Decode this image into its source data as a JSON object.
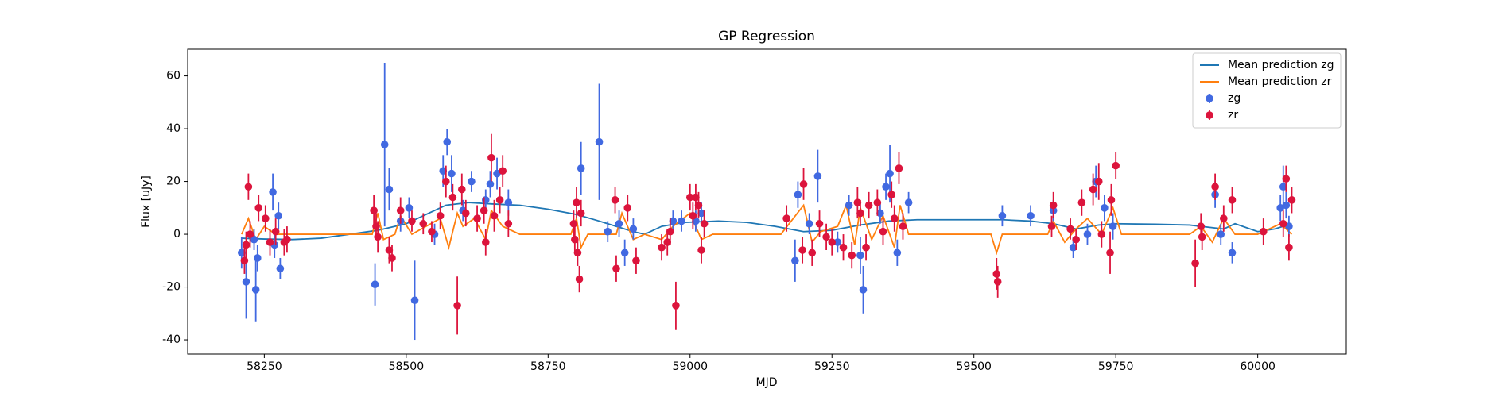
{
  "chart_data": {
    "type": "errorbar",
    "title": "GP Regression",
    "x_label": "MJD",
    "y_label": "Flux [uJy]",
    "xlim": [
      58115,
      60156
    ],
    "ylim": [
      -45.4,
      70.1
    ],
    "xticks": [
      58250,
      58500,
      58750,
      59000,
      59250,
      59500,
      59750,
      60000
    ],
    "yticks": [
      -40,
      -20,
      0,
      20,
      40,
      60
    ],
    "legend": "upper right",
    "series": [
      {
        "name": "Mean prediction zg",
        "type": "line",
        "color": "#1f77b4",
        "x": [
          58210,
          58250,
          58300,
          58350,
          58400,
          58450,
          58500,
          58540,
          58570,
          58610,
          58650,
          58700,
          58750,
          58800,
          58840,
          58870,
          58900,
          58920,
          58950,
          58990,
          59050,
          59100,
          59150,
          59200,
          59250,
          59300,
          59350,
          59400,
          59480,
          59550,
          59600,
          59640,
          59680,
          59720,
          59750,
          59820,
          59880,
          59920,
          59940,
          59960,
          60000,
          60030,
          60060
        ],
        "values": [
          -1.5,
          -1.8,
          -2,
          -1.5,
          0,
          1.5,
          4,
          8,
          11,
          12,
          11.5,
          11,
          9.5,
          7.5,
          5,
          3,
          1,
          0,
          3,
          4.5,
          5,
          4.5,
          3,
          1,
          1.5,
          3.5,
          5,
          5.5,
          5.5,
          5.5,
          5,
          4,
          2,
          3.5,
          4,
          3.8,
          3.5,
          2.5,
          2,
          4,
          1,
          2,
          4
        ]
      },
      {
        "name": "Mean prediction zr",
        "type": "line",
        "color": "#ff7f0e",
        "x": [
          58210,
          58222,
          58235,
          58250,
          58270,
          58300,
          58440,
          58450,
          58460,
          58480,
          58490,
          58510,
          58560,
          58575,
          58590,
          58600,
          58620,
          58640,
          58650,
          58670,
          58700,
          58790,
          58800,
          58808,
          58820,
          58870,
          58880,
          58900,
          58920,
          58950,
          58970,
          59000,
          59020,
          59040,
          59160,
          59200,
          59215,
          59230,
          59260,
          59275,
          59290,
          59300,
          59320,
          59340,
          59360,
          59370,
          59385,
          59530,
          59540,
          59550,
          59630,
          59640,
          59660,
          59680,
          59700,
          59725,
          59745,
          59760,
          59880,
          59900,
          59920,
          59940,
          59960,
          60000,
          60040,
          60060
        ],
        "values": [
          0,
          6,
          -2,
          3,
          0,
          0,
          0,
          8,
          -2,
          0,
          7,
          0,
          6,
          -5,
          8,
          3,
          6,
          -2,
          9,
          3,
          0,
          0,
          6,
          -5,
          0,
          0,
          8,
          -2,
          0,
          -2,
          3,
          8,
          -2,
          0,
          0,
          11,
          -3,
          1,
          3,
          11,
          -4,
          10,
          -2,
          7,
          -5,
          11,
          0,
          0,
          -7,
          0,
          0,
          5,
          -3,
          2,
          6,
          0,
          10,
          0,
          0,
          3,
          -3,
          6,
          0,
          0,
          4,
          0
        ]
      },
      {
        "name": "zg",
        "type": "errorbar",
        "color": "#4169e1",
        "x": [
          58210,
          58218,
          58232,
          58235,
          58238,
          58265,
          58268,
          58275,
          58278,
          58445,
          58462,
          58470,
          58490,
          58505,
          58515,
          58550,
          58565,
          58572,
          58580,
          58600,
          58615,
          58640,
          58648,
          58660,
          58680,
          58808,
          58840,
          58855,
          58875,
          58885,
          58900,
          58970,
          58985,
          59010,
          59020,
          59185,
          59190,
          59210,
          59225,
          59260,
          59280,
          59300,
          59305,
          59335,
          59345,
          59352,
          59365,
          59385,
          59550,
          59600,
          59640,
          59675,
          59700,
          59715,
          59730,
          59745,
          59925,
          59935,
          59955,
          60040,
          60045,
          60050,
          60055
        ],
        "values": [
          -7,
          -18,
          -2,
          -21,
          -9,
          16,
          -4,
          7,
          -13,
          -19,
          34,
          17,
          5,
          10,
          -25,
          0,
          24,
          35,
          23,
          9,
          20,
          13,
          19,
          23,
          12,
          25,
          35,
          1,
          4,
          -7,
          2,
          5,
          5,
          5,
          8,
          -10,
          15,
          4,
          22,
          -3,
          11,
          -8,
          -21,
          8,
          18,
          23,
          -7,
          12,
          7,
          7,
          9,
          -5,
          0,
          20,
          10,
          3,
          15,
          0,
          -7,
          10,
          18,
          11,
          3
        ],
        "errors": [
          6,
          14,
          4,
          12,
          5,
          7,
          5,
          5,
          4,
          8,
          31,
          8,
          4,
          4,
          15,
          4,
          6,
          5,
          7,
          4,
          4,
          4,
          5,
          6,
          5,
          10,
          22,
          4,
          5,
          5,
          4,
          4,
          4,
          4,
          4,
          8,
          5,
          4,
          10,
          4,
          4,
          7,
          9,
          4,
          5,
          11,
          5,
          4,
          4,
          4,
          4,
          4,
          4,
          6,
          5,
          5,
          5,
          4,
          4,
          5,
          8,
          5,
          4
        ]
      },
      {
        "name": "zr",
        "type": "errorbar",
        "color": "#dc143c",
        "x": [
          58215,
          58218,
          58222,
          58225,
          58240,
          58252,
          58260,
          58270,
          58285,
          58290,
          58443,
          58447,
          58450,
          58470,
          58475,
          58490,
          58510,
          58530,
          58545,
          58560,
          58570,
          58582,
          58590,
          58598,
          58605,
          58625,
          58637,
          58640,
          58650,
          58655,
          58665,
          58670,
          58680,
          58795,
          58797,
          58800,
          58805,
          58802,
          58808,
          58870,
          58868,
          58890,
          58905,
          58950,
          58960,
          58975,
          58965,
          59000,
          59005,
          59010,
          59015,
          59020,
          59025,
          59170,
          59200,
          59198,
          59215,
          59228,
          59240,
          59250,
          59270,
          59285,
          59295,
          59300,
          59310,
          59315,
          59330,
          59340,
          59355,
          59360,
          59368,
          59375,
          59540,
          59542,
          59640,
          59637,
          59670,
          59680,
          59690,
          59710,
          59720,
          59725,
          59740,
          59742,
          59750,
          59890,
          59900,
          59902,
          59925,
          59940,
          59955,
          60010,
          60045,
          60050,
          60055,
          60060
        ],
        "values": [
          -10,
          -4,
          18,
          0,
          10,
          6,
          -3,
          1,
          -3,
          -2,
          9,
          3,
          -1,
          -6,
          -9,
          9,
          5,
          4,
          1,
          7,
          20,
          14,
          -27,
          17,
          8,
          6,
          9,
          -3,
          29,
          7,
          13,
          24,
          4,
          4,
          -2,
          12,
          -17,
          -7,
          8,
          -13,
          13,
          10,
          -10,
          -5,
          -3,
          -27,
          1,
          14,
          7,
          14,
          11,
          -6,
          4,
          6,
          19,
          -6,
          -7,
          4,
          -1,
          -3,
          -5,
          -8,
          12,
          8,
          -5,
          11,
          12,
          1,
          15,
          6,
          25,
          3,
          -15,
          -18,
          11,
          3,
          2,
          -2,
          12,
          17,
          20,
          0,
          -7,
          13,
          26,
          -11,
          3,
          -1,
          18,
          6,
          13,
          1,
          4,
          21,
          -5,
          13
        ],
        "errors": [
          5,
          5,
          5,
          5,
          5,
          5,
          5,
          5,
          5,
          5,
          6,
          5,
          6,
          5,
          5,
          5,
          4,
          4,
          4,
          5,
          6,
          5,
          11,
          6,
          5,
          5,
          5,
          5,
          9,
          6,
          5,
          6,
          5,
          5,
          5,
          6,
          5,
          5,
          5,
          5,
          5,
          5,
          5,
          5,
          5,
          9,
          5,
          5,
          5,
          5,
          5,
          5,
          5,
          5,
          6,
          5,
          5,
          5,
          5,
          5,
          5,
          5,
          6,
          5,
          5,
          5,
          5,
          5,
          5,
          5,
          6,
          5,
          6,
          6,
          5,
          4,
          4,
          4,
          5,
          6,
          7,
          5,
          8,
          6,
          5,
          9,
          5,
          5,
          5,
          5,
          5,
          5,
          5,
          5,
          5,
          5
        ]
      }
    ]
  }
}
